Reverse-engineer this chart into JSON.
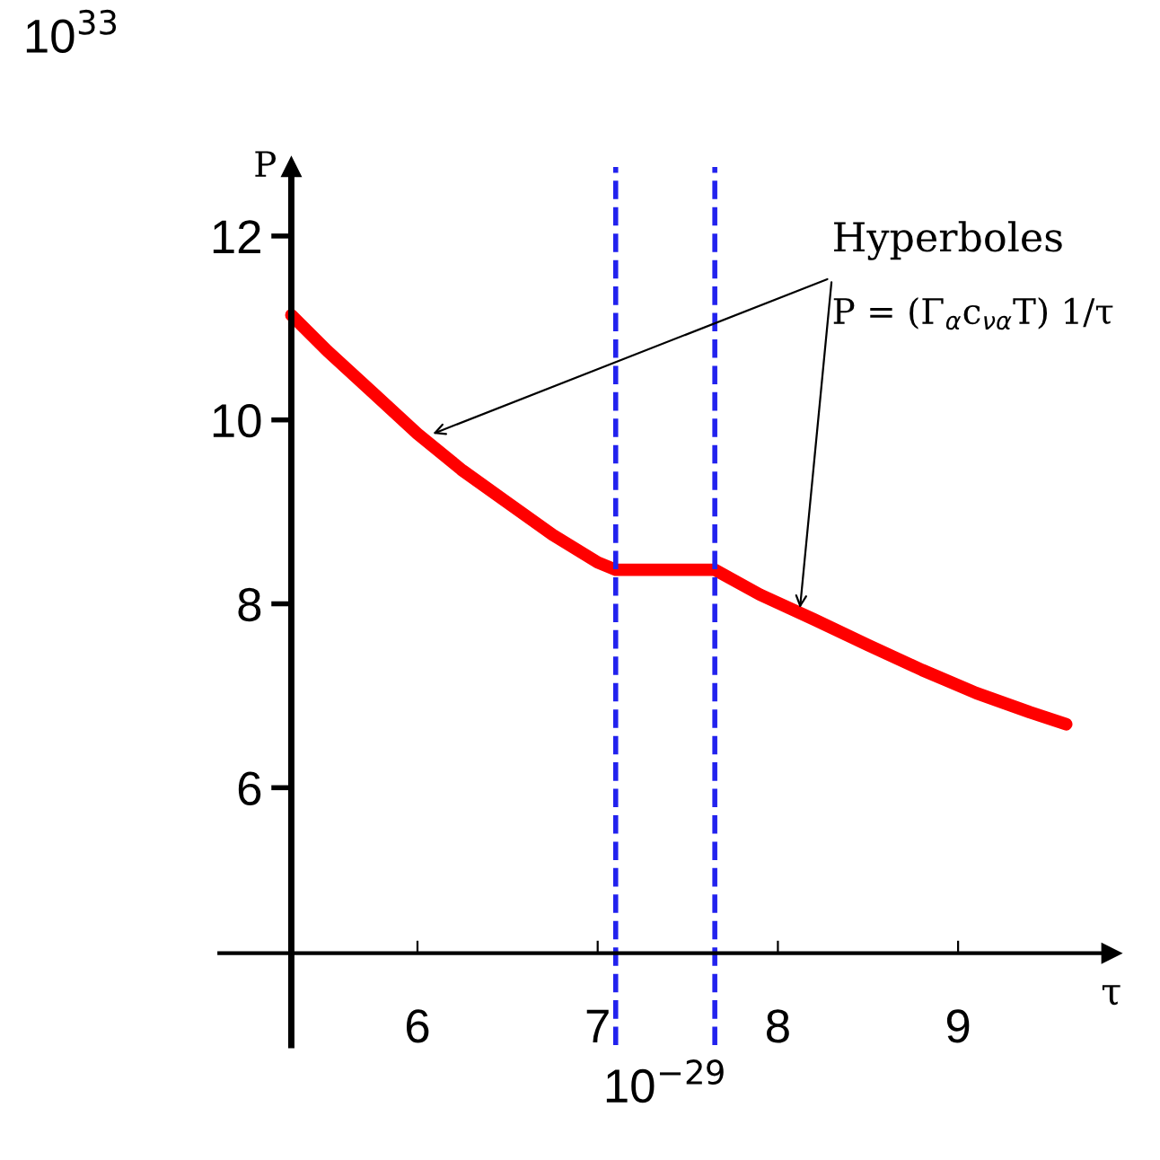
{
  "chart_data": {
    "type": "line",
    "xlabel": "τ",
    "ylabel": "P",
    "x": [
      5.3,
      5.5,
      5.75,
      6.0,
      6.25,
      6.5,
      6.75,
      7.0,
      7.1,
      7.65,
      7.9,
      8.2,
      8.5,
      8.8,
      9.1,
      9.4,
      9.6
    ],
    "series": [
      {
        "color": "#ff0000",
        "values": [
          11.14,
          10.75,
          10.3,
          9.85,
          9.45,
          9.1,
          8.75,
          8.45,
          8.37,
          8.37,
          8.1,
          7.83,
          7.55,
          7.28,
          7.03,
          6.82,
          6.69
        ]
      }
    ],
    "xlim": [
      4.9,
      9.85
    ],
    "ylim": [
      3.2,
      12.75
    ],
    "xticks": [
      6,
      7,
      8,
      9
    ],
    "yticks": [
      6,
      8,
      10,
      12
    ],
    "ref_lines": [
      {
        "axis": "x",
        "value": 7.1,
        "color": "#2222ee",
        "line_style": "dashed"
      },
      {
        "axis": "x",
        "value": 7.65,
        "color": "#2222ee",
        "line_style": "dashed"
      }
    ],
    "annotations": [
      "10$^{33}$",
      "10$^{−29}$",
      {
        "text": "Hyperboles",
        "x": 6.06,
        "y": 9.83
      },
      {
        "text": "P = (Γ$_{α}$c$_{να}$T) 1/τ",
        "x": 8.12,
        "y": 7.9
      }
    ],
    "grid": false,
    "legend": false,
    "marker": "none",
    "line_style": "solid"
  }
}
